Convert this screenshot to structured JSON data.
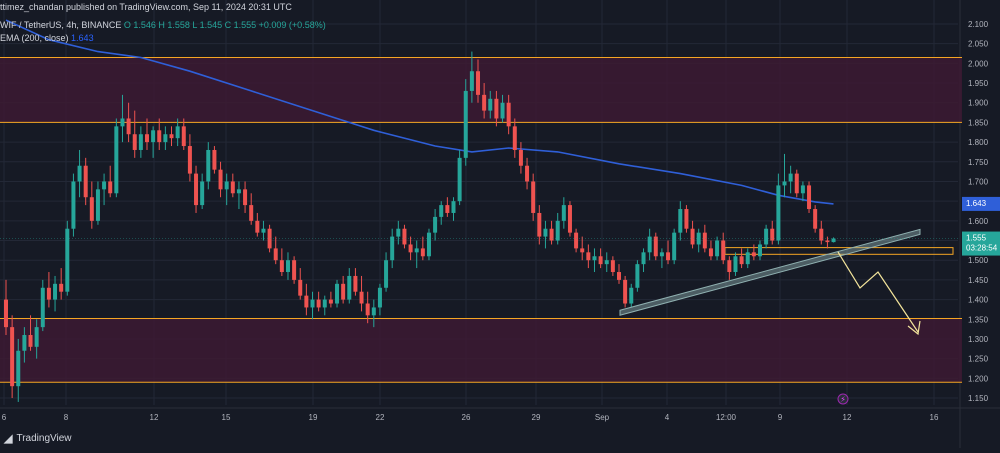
{
  "header": {
    "published": "ttimez_chandan published on TradingView.com, Sep 11, 2024 20:31 UTC",
    "symbol": "WIF / TetherUS, 4h, BINANCE",
    "ohlc": "O 1.546  H 1.558  L 1.545  C 1.555  +0.009 (+0.58%)",
    "ema_label": "EMA (200, close)",
    "ema_value": "1.643"
  },
  "footer": {
    "brand": "TradingView"
  },
  "colors": {
    "background": "#161a25",
    "up": "#26a69a",
    "down": "#ef5350",
    "ema": "#2f5fd8",
    "zone_fill": "#3c1a33",
    "zone_border": "#f5a623",
    "arrow": "#f3e49b",
    "trendline": "#8fb0b0",
    "grid": "#232836"
  },
  "chart_data": {
    "type": "candlestick",
    "symbol": "WIF / TetherUS",
    "interval": "4h",
    "exchange": "BINANCE",
    "x_ticks": [
      "6",
      "8",
      "12",
      "15",
      "19",
      "22",
      "26",
      "29",
      "Sep",
      "4",
      "12:00",
      "9",
      "12",
      "16"
    ],
    "y_ticks": [
      "2.100",
      "2.050",
      "2.000",
      "1.950",
      "1.900",
      "1.850",
      "1.800",
      "1.750",
      "1.700",
      "1.650",
      "1.600",
      "1.550",
      "1.500",
      "1.450",
      "1.400",
      "1.350",
      "1.300",
      "1.250",
      "1.200",
      "1.150"
    ],
    "ylim": [
      1.13,
      2.12
    ],
    "last_price": "1.555",
    "countdown": "03:28:54",
    "ema_price": "1.643",
    "zones": [
      {
        "top": 2.015,
        "bottom": 1.85
      },
      {
        "top": 1.352,
        "bottom": 1.19
      }
    ],
    "small_zone": {
      "top": 1.532,
      "bottom": 1.515
    },
    "trendline": {
      "start_price": 1.378,
      "end_price": 1.563
    },
    "candles": [
      {
        "o": 1.4,
        "h": 1.45,
        "l": 1.31,
        "c": 1.33
      },
      {
        "o": 1.33,
        "h": 1.36,
        "l": 1.15,
        "c": 1.18
      },
      {
        "o": 1.18,
        "h": 1.3,
        "l": 1.14,
        "c": 1.27
      },
      {
        "o": 1.27,
        "h": 1.33,
        "l": 1.24,
        "c": 1.31
      },
      {
        "o": 1.31,
        "h": 1.36,
        "l": 1.27,
        "c": 1.28
      },
      {
        "o": 1.28,
        "h": 1.35,
        "l": 1.25,
        "c": 1.33
      },
      {
        "o": 1.33,
        "h": 1.45,
        "l": 1.32,
        "c": 1.43
      },
      {
        "o": 1.43,
        "h": 1.47,
        "l": 1.38,
        "c": 1.4
      },
      {
        "o": 1.4,
        "h": 1.46,
        "l": 1.37,
        "c": 1.44
      },
      {
        "o": 1.44,
        "h": 1.48,
        "l": 1.4,
        "c": 1.42
      },
      {
        "o": 1.42,
        "h": 1.6,
        "l": 1.41,
        "c": 1.58
      },
      {
        "o": 1.58,
        "h": 1.72,
        "l": 1.56,
        "c": 1.7
      },
      {
        "o": 1.7,
        "h": 1.78,
        "l": 1.66,
        "c": 1.74
      },
      {
        "o": 1.74,
        "h": 1.76,
        "l": 1.64,
        "c": 1.66
      },
      {
        "o": 1.66,
        "h": 1.7,
        "l": 1.58,
        "c": 1.6
      },
      {
        "o": 1.6,
        "h": 1.7,
        "l": 1.59,
        "c": 1.68
      },
      {
        "o": 1.68,
        "h": 1.72,
        "l": 1.64,
        "c": 1.7
      },
      {
        "o": 1.7,
        "h": 1.74,
        "l": 1.66,
        "c": 1.67
      },
      {
        "o": 1.67,
        "h": 1.86,
        "l": 1.66,
        "c": 1.84
      },
      {
        "o": 1.84,
        "h": 1.92,
        "l": 1.8,
        "c": 1.86
      },
      {
        "o": 1.86,
        "h": 1.9,
        "l": 1.8,
        "c": 1.82
      },
      {
        "o": 1.82,
        "h": 1.88,
        "l": 1.76,
        "c": 1.78
      },
      {
        "o": 1.78,
        "h": 1.84,
        "l": 1.76,
        "c": 1.82
      },
      {
        "o": 1.82,
        "h": 1.86,
        "l": 1.78,
        "c": 1.8
      },
      {
        "o": 1.8,
        "h": 1.84,
        "l": 1.76,
        "c": 1.83
      },
      {
        "o": 1.83,
        "h": 1.86,
        "l": 1.78,
        "c": 1.8
      },
      {
        "o": 1.8,
        "h": 1.84,
        "l": 1.78,
        "c": 1.82
      },
      {
        "o": 1.82,
        "h": 1.84,
        "l": 1.79,
        "c": 1.81
      },
      {
        "o": 1.81,
        "h": 1.86,
        "l": 1.79,
        "c": 1.84
      },
      {
        "o": 1.84,
        "h": 1.86,
        "l": 1.78,
        "c": 1.79
      },
      {
        "o": 1.79,
        "h": 1.82,
        "l": 1.7,
        "c": 1.72
      },
      {
        "o": 1.72,
        "h": 1.74,
        "l": 1.62,
        "c": 1.64
      },
      {
        "o": 1.64,
        "h": 1.72,
        "l": 1.63,
        "c": 1.7
      },
      {
        "o": 1.7,
        "h": 1.8,
        "l": 1.68,
        "c": 1.78
      },
      {
        "o": 1.78,
        "h": 1.79,
        "l": 1.72,
        "c": 1.73
      },
      {
        "o": 1.73,
        "h": 1.75,
        "l": 1.66,
        "c": 1.68
      },
      {
        "o": 1.68,
        "h": 1.72,
        "l": 1.64,
        "c": 1.7
      },
      {
        "o": 1.7,
        "h": 1.72,
        "l": 1.66,
        "c": 1.67
      },
      {
        "o": 1.67,
        "h": 1.7,
        "l": 1.63,
        "c": 1.68
      },
      {
        "o": 1.68,
        "h": 1.7,
        "l": 1.62,
        "c": 1.64
      },
      {
        "o": 1.64,
        "h": 1.67,
        "l": 1.59,
        "c": 1.6
      },
      {
        "o": 1.6,
        "h": 1.62,
        "l": 1.56,
        "c": 1.57
      },
      {
        "o": 1.57,
        "h": 1.6,
        "l": 1.55,
        "c": 1.58
      },
      {
        "o": 1.58,
        "h": 1.59,
        "l": 1.52,
        "c": 1.53
      },
      {
        "o": 1.53,
        "h": 1.56,
        "l": 1.49,
        "c": 1.5
      },
      {
        "o": 1.5,
        "h": 1.53,
        "l": 1.46,
        "c": 1.47
      },
      {
        "o": 1.47,
        "h": 1.52,
        "l": 1.45,
        "c": 1.5
      },
      {
        "o": 1.5,
        "h": 1.51,
        "l": 1.44,
        "c": 1.45
      },
      {
        "o": 1.45,
        "h": 1.48,
        "l": 1.4,
        "c": 1.41
      },
      {
        "o": 1.41,
        "h": 1.44,
        "l": 1.36,
        "c": 1.38
      },
      {
        "o": 1.38,
        "h": 1.42,
        "l": 1.35,
        "c": 1.4
      },
      {
        "o": 1.4,
        "h": 1.42,
        "l": 1.37,
        "c": 1.38
      },
      {
        "o": 1.38,
        "h": 1.41,
        "l": 1.36,
        "c": 1.4
      },
      {
        "o": 1.4,
        "h": 1.42,
        "l": 1.38,
        "c": 1.39
      },
      {
        "o": 1.39,
        "h": 1.45,
        "l": 1.38,
        "c": 1.44
      },
      {
        "o": 1.44,
        "h": 1.46,
        "l": 1.39,
        "c": 1.4
      },
      {
        "o": 1.4,
        "h": 1.48,
        "l": 1.39,
        "c": 1.46
      },
      {
        "o": 1.46,
        "h": 1.48,
        "l": 1.41,
        "c": 1.42
      },
      {
        "o": 1.42,
        "h": 1.46,
        "l": 1.37,
        "c": 1.39
      },
      {
        "o": 1.39,
        "h": 1.42,
        "l": 1.34,
        "c": 1.36
      },
      {
        "o": 1.36,
        "h": 1.4,
        "l": 1.33,
        "c": 1.38
      },
      {
        "o": 1.38,
        "h": 1.44,
        "l": 1.36,
        "c": 1.43
      },
      {
        "o": 1.43,
        "h": 1.52,
        "l": 1.42,
        "c": 1.5
      },
      {
        "o": 1.5,
        "h": 1.58,
        "l": 1.48,
        "c": 1.56
      },
      {
        "o": 1.56,
        "h": 1.6,
        "l": 1.54,
        "c": 1.58
      },
      {
        "o": 1.58,
        "h": 1.59,
        "l": 1.53,
        "c": 1.54
      },
      {
        "o": 1.54,
        "h": 1.56,
        "l": 1.5,
        "c": 1.52
      },
      {
        "o": 1.52,
        "h": 1.55,
        "l": 1.48,
        "c": 1.53
      },
      {
        "o": 1.53,
        "h": 1.56,
        "l": 1.5,
        "c": 1.51
      },
      {
        "o": 1.51,
        "h": 1.58,
        "l": 1.5,
        "c": 1.57
      },
      {
        "o": 1.57,
        "h": 1.63,
        "l": 1.55,
        "c": 1.61
      },
      {
        "o": 1.61,
        "h": 1.65,
        "l": 1.59,
        "c": 1.64
      },
      {
        "o": 1.64,
        "h": 1.66,
        "l": 1.61,
        "c": 1.62
      },
      {
        "o": 1.62,
        "h": 1.66,
        "l": 1.6,
        "c": 1.65
      },
      {
        "o": 1.65,
        "h": 1.78,
        "l": 1.64,
        "c": 1.76
      },
      {
        "o": 1.76,
        "h": 1.96,
        "l": 1.74,
        "c": 1.93
      },
      {
        "o": 1.93,
        "h": 2.03,
        "l": 1.9,
        "c": 1.98
      },
      {
        "o": 1.98,
        "h": 2.01,
        "l": 1.9,
        "c": 1.92
      },
      {
        "o": 1.92,
        "h": 1.95,
        "l": 1.86,
        "c": 1.88
      },
      {
        "o": 1.88,
        "h": 1.93,
        "l": 1.86,
        "c": 1.91
      },
      {
        "o": 1.91,
        "h": 1.93,
        "l": 1.84,
        "c": 1.86
      },
      {
        "o": 1.86,
        "h": 1.92,
        "l": 1.85,
        "c": 1.9
      },
      {
        "o": 1.9,
        "h": 1.92,
        "l": 1.82,
        "c": 1.84
      },
      {
        "o": 1.84,
        "h": 1.86,
        "l": 1.76,
        "c": 1.78
      },
      {
        "o": 1.78,
        "h": 1.8,
        "l": 1.72,
        "c": 1.74
      },
      {
        "o": 1.74,
        "h": 1.76,
        "l": 1.68,
        "c": 1.7
      },
      {
        "o": 1.7,
        "h": 1.72,
        "l": 1.6,
        "c": 1.62
      },
      {
        "o": 1.62,
        "h": 1.64,
        "l": 1.54,
        "c": 1.56
      },
      {
        "o": 1.56,
        "h": 1.6,
        "l": 1.53,
        "c": 1.58
      },
      {
        "o": 1.58,
        "h": 1.6,
        "l": 1.54,
        "c": 1.55
      },
      {
        "o": 1.55,
        "h": 1.62,
        "l": 1.54,
        "c": 1.6
      },
      {
        "o": 1.6,
        "h": 1.66,
        "l": 1.58,
        "c": 1.64
      },
      {
        "o": 1.64,
        "h": 1.65,
        "l": 1.56,
        "c": 1.57
      },
      {
        "o": 1.57,
        "h": 1.58,
        "l": 1.52,
        "c": 1.53
      },
      {
        "o": 1.53,
        "h": 1.56,
        "l": 1.5,
        "c": 1.52
      },
      {
        "o": 1.52,
        "h": 1.54,
        "l": 1.48,
        "c": 1.5
      },
      {
        "o": 1.5,
        "h": 1.53,
        "l": 1.47,
        "c": 1.51
      },
      {
        "o": 1.51,
        "h": 1.53,
        "l": 1.48,
        "c": 1.49
      },
      {
        "o": 1.49,
        "h": 1.52,
        "l": 1.47,
        "c": 1.5
      },
      {
        "o": 1.5,
        "h": 1.51,
        "l": 1.46,
        "c": 1.47
      },
      {
        "o": 1.47,
        "h": 1.49,
        "l": 1.44,
        "c": 1.45
      },
      {
        "o": 1.45,
        "h": 1.46,
        "l": 1.38,
        "c": 1.39
      },
      {
        "o": 1.39,
        "h": 1.44,
        "l": 1.38,
        "c": 1.43
      },
      {
        "o": 1.43,
        "h": 1.5,
        "l": 1.42,
        "c": 1.49
      },
      {
        "o": 1.49,
        "h": 1.53,
        "l": 1.47,
        "c": 1.52
      },
      {
        "o": 1.52,
        "h": 1.58,
        "l": 1.5,
        "c": 1.56
      },
      {
        "o": 1.56,
        "h": 1.57,
        "l": 1.5,
        "c": 1.51
      },
      {
        "o": 1.51,
        "h": 1.53,
        "l": 1.48,
        "c": 1.52
      },
      {
        "o": 1.52,
        "h": 1.55,
        "l": 1.49,
        "c": 1.5
      },
      {
        "o": 1.5,
        "h": 1.58,
        "l": 1.49,
        "c": 1.57
      },
      {
        "o": 1.57,
        "h": 1.65,
        "l": 1.55,
        "c": 1.63
      },
      {
        "o": 1.63,
        "h": 1.64,
        "l": 1.57,
        "c": 1.58
      },
      {
        "o": 1.58,
        "h": 1.6,
        "l": 1.53,
        "c": 1.54
      },
      {
        "o": 1.54,
        "h": 1.58,
        "l": 1.52,
        "c": 1.57
      },
      {
        "o": 1.57,
        "h": 1.59,
        "l": 1.52,
        "c": 1.53
      },
      {
        "o": 1.53,
        "h": 1.55,
        "l": 1.5,
        "c": 1.51
      },
      {
        "o": 1.51,
        "h": 1.56,
        "l": 1.5,
        "c": 1.55
      },
      {
        "o": 1.55,
        "h": 1.57,
        "l": 1.49,
        "c": 1.5
      },
      {
        "o": 1.5,
        "h": 1.51,
        "l": 1.45,
        "c": 1.47
      },
      {
        "o": 1.47,
        "h": 1.52,
        "l": 1.46,
        "c": 1.51
      },
      {
        "o": 1.51,
        "h": 1.53,
        "l": 1.48,
        "c": 1.49
      },
      {
        "o": 1.49,
        "h": 1.53,
        "l": 1.48,
        "c": 1.52
      },
      {
        "o": 1.52,
        "h": 1.54,
        "l": 1.5,
        "c": 1.51
      },
      {
        "o": 1.51,
        "h": 1.55,
        "l": 1.5,
        "c": 1.54
      },
      {
        "o": 1.54,
        "h": 1.59,
        "l": 1.53,
        "c": 1.58
      },
      {
        "o": 1.58,
        "h": 1.6,
        "l": 1.54,
        "c": 1.55
      },
      {
        "o": 1.55,
        "h": 1.72,
        "l": 1.54,
        "c": 1.69
      },
      {
        "o": 1.69,
        "h": 1.77,
        "l": 1.66,
        "c": 1.7
      },
      {
        "o": 1.7,
        "h": 1.74,
        "l": 1.67,
        "c": 1.72
      },
      {
        "o": 1.72,
        "h": 1.73,
        "l": 1.66,
        "c": 1.67
      },
      {
        "o": 1.67,
        "h": 1.7,
        "l": 1.65,
        "c": 1.69
      },
      {
        "o": 1.69,
        "h": 1.7,
        "l": 1.62,
        "c": 1.63
      },
      {
        "o": 1.63,
        "h": 1.64,
        "l": 1.57,
        "c": 1.58
      },
      {
        "o": 1.58,
        "h": 1.6,
        "l": 1.54,
        "c": 1.55
      },
      {
        "o": 1.55,
        "h": 1.56,
        "l": 1.53,
        "c": 1.546
      },
      {
        "o": 1.546,
        "h": 1.558,
        "l": 1.545,
        "c": 1.555
      }
    ],
    "ema": [
      [
        0,
        2.11
      ],
      [
        7,
        2.06
      ],
      [
        15,
        2.03
      ],
      [
        22,
        2.015
      ],
      [
        30,
        1.98
      ],
      [
        40,
        1.93
      ],
      [
        50,
        1.88
      ],
      [
        60,
        1.83
      ],
      [
        70,
        1.79
      ],
      [
        76,
        1.775
      ],
      [
        82,
        1.785
      ],
      [
        90,
        1.775
      ],
      [
        100,
        1.745
      ],
      [
        110,
        1.72
      ],
      [
        120,
        1.69
      ],
      [
        126,
        1.665
      ],
      [
        132,
        1.648
      ],
      [
        135,
        1.643
      ]
    ]
  }
}
